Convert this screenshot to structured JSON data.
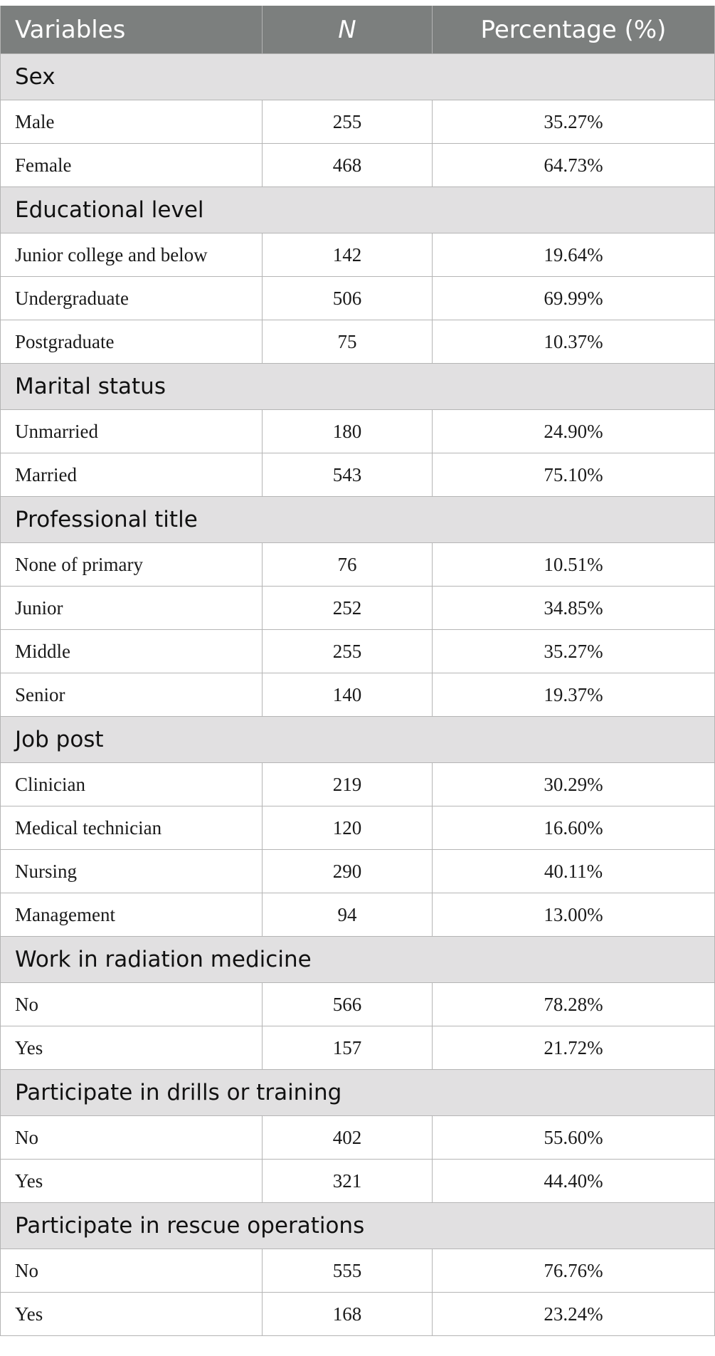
{
  "header": {
    "variables": "Variables",
    "n": "N",
    "percentage": "Percentage (%)"
  },
  "groups": [
    {
      "title": "Sex",
      "rows": [
        {
          "label": "Male",
          "n": "255",
          "pct": "35.27%"
        },
        {
          "label": "Female",
          "n": "468",
          "pct": "64.73%"
        }
      ]
    },
    {
      "title": "Educational level",
      "rows": [
        {
          "label": "Junior college and below",
          "n": "142",
          "pct": "19.64%"
        },
        {
          "label": "Undergraduate",
          "n": "506",
          "pct": "69.99%"
        },
        {
          "label": "Postgraduate",
          "n": "75",
          "pct": "10.37%"
        }
      ]
    },
    {
      "title": "Marital status",
      "rows": [
        {
          "label": "Unmarried",
          "n": "180",
          "pct": "24.90%"
        },
        {
          "label": "Married",
          "n": "543",
          "pct": "75.10%"
        }
      ]
    },
    {
      "title": "Professional title",
      "rows": [
        {
          "label": "None of primary",
          "n": "76",
          "pct": "10.51%"
        },
        {
          "label": "Junior",
          "n": "252",
          "pct": "34.85%"
        },
        {
          "label": "Middle",
          "n": "255",
          "pct": "35.27%"
        },
        {
          "label": "Senior",
          "n": "140",
          "pct": "19.37%"
        }
      ]
    },
    {
      "title": "Job post",
      "rows": [
        {
          "label": "Clinician",
          "n": "219",
          "pct": "30.29%"
        },
        {
          "label": "Medical technician",
          "n": "120",
          "pct": "16.60%"
        },
        {
          "label": "Nursing",
          "n": "290",
          "pct": "40.11%"
        },
        {
          "label": "Management",
          "n": "94",
          "pct": "13.00%"
        }
      ]
    },
    {
      "title": "Work in radiation medicine",
      "rows": [
        {
          "label": "No",
          "n": "566",
          "pct": "78.28%"
        },
        {
          "label": "Yes",
          "n": "157",
          "pct": "21.72%"
        }
      ]
    },
    {
      "title": "Participate in drills or training",
      "rows": [
        {
          "label": "No",
          "n": "402",
          "pct": "55.60%"
        },
        {
          "label": "Yes",
          "n": "321",
          "pct": "44.40%"
        }
      ]
    },
    {
      "title": "Participate in rescue operations",
      "rows": [
        {
          "label": "No",
          "n": "555",
          "pct": "76.76%"
        },
        {
          "label": "Yes",
          "n": "168",
          "pct": "23.24%"
        }
      ]
    }
  ]
}
